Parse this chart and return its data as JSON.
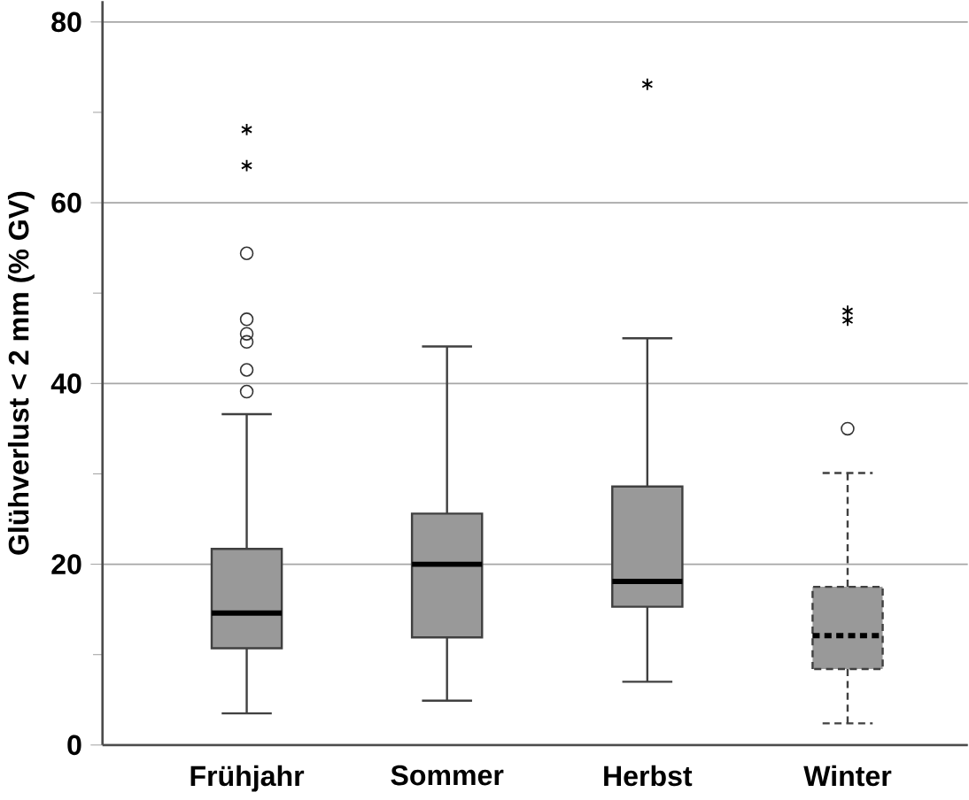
{
  "chart_data": {
    "type": "box",
    "ylabel": "Glühverlust < 2 mm (% GV)",
    "categories": [
      "Frühjahr",
      "Sommer",
      "Herbst",
      "Winter"
    ],
    "boxes": [
      {
        "low": 3.5,
        "q1": 10.7,
        "median": 14.6,
        "q3": 21.7,
        "high": 36.6,
        "outliers": [
          39.1,
          41.5,
          44.6,
          45.5,
          47.1,
          54.4,
          64.1,
          68.1
        ]
      },
      {
        "low": 4.9,
        "q1": 11.9,
        "median": 20,
        "q3": 25.6,
        "high": 44.1
      },
      {
        "low": 7.0,
        "q1": 15.3,
        "median": 18.1,
        "q3": 28.6,
        "high": 45.0,
        "outliers": [
          73.1
        ]
      },
      {
        "low": 2.4,
        "q1": 8.4,
        "median": 12.1,
        "q3": 17.5,
        "high": 30.1,
        "outliers": [
          35.0,
          47.0,
          48.0
        ]
      }
    ],
    "color": "#999999",
    "ylim": [
      0,
      82.3
    ],
    "yticks": [
      0,
      20,
      40,
      60,
      80
    ],
    "grid": "y"
  }
}
